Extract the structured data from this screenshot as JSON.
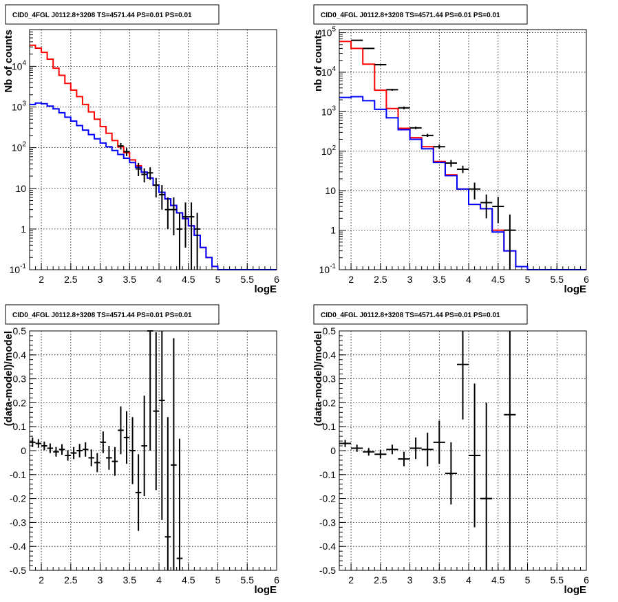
{
  "chart_data": [
    {
      "type": "line",
      "title": "CID0_4FGL J0112.8+3208 TS=4571.44 PS=0.01 PS=0.01",
      "xlabel": "logE",
      "ylabel": "Nb of counts",
      "yscale": "log",
      "xlim": [
        1.8,
        6
      ],
      "ylim": [
        0.1,
        80000
      ],
      "grid": true,
      "x_ticks": [
        "2",
        "2.5",
        "3",
        "3.5",
        "4",
        "4.5",
        "5",
        "5.5",
        "6"
      ],
      "y_ticks": [
        "10^-1",
        "1",
        "10",
        "10^2",
        "10^3",
        "10^4"
      ],
      "colors": {
        "model_total": "#ff0000",
        "model_source": "#0000ff",
        "data": "#000000"
      },
      "bin_edges": [
        1.8,
        1.9,
        2.0,
        2.1,
        2.2,
        2.3,
        2.4,
        2.5,
        2.6,
        2.7,
        2.8,
        2.9,
        3.0,
        3.1,
        3.2,
        3.3,
        3.4,
        3.5,
        3.6,
        3.7,
        3.8,
        3.9,
        4.0,
        4.1,
        4.2,
        4.3,
        4.4,
        4.5,
        4.6,
        4.7,
        4.8,
        4.9,
        5.0,
        5.1,
        5.2,
        5.3,
        5.4,
        5.5,
        5.6,
        5.7,
        5.8,
        5.9,
        6.0
      ],
      "series": [
        {
          "values": [
            33000,
            28000,
            22000,
            15000,
            9000,
            6000,
            3800,
            2600,
            1800,
            1150,
            760,
            500,
            330,
            225,
            150,
            105,
            75,
            50,
            36,
            25,
            18,
            12,
            8,
            5.5,
            3.8,
            2.5,
            1.8,
            1.2,
            0.7,
            0.35,
            0.2,
            0.12,
            0.1,
            0.1,
            0.1,
            0.1,
            0.1,
            0.1,
            0.1,
            0.1,
            0.1,
            0.1
          ]
        },
        {
          "values": [
            1150,
            1250,
            1200,
            1050,
            900,
            720,
            560,
            450,
            350,
            270,
            210,
            165,
            130,
            105,
            85,
            68,
            55,
            43,
            33,
            25,
            18,
            12,
            8,
            5.5,
            3.8,
            2.5,
            1.8,
            1.2,
            0.7,
            0.35,
            0.2,
            0.12,
            0.1,
            0.1,
            0.1,
            0.1,
            0.1,
            0.1,
            0.1,
            0.1,
            0.1,
            0.1
          ]
        }
      ],
      "points": [
        {
          "x": 3.35,
          "y": 110,
          "lo": 90,
          "hi": 130
        },
        {
          "x": 3.45,
          "y": 80,
          "lo": 62,
          "hi": 98
        },
        {
          "x": 3.65,
          "y": 30,
          "lo": 20,
          "hi": 42
        },
        {
          "x": 3.75,
          "y": 22,
          "lo": 14,
          "hi": 31
        },
        {
          "x": 3.85,
          "y": 24,
          "lo": 16,
          "hi": 33
        },
        {
          "x": 3.95,
          "y": 12,
          "lo": 6,
          "hi": 18
        },
        {
          "x": 4.05,
          "y": 7,
          "lo": 3,
          "hi": 12
        },
        {
          "x": 4.15,
          "y": 3,
          "lo": 1,
          "hi": 6
        },
        {
          "x": 4.25,
          "y": 3,
          "lo": 0.7,
          "hi": 6
        },
        {
          "x": 4.35,
          "y": 1,
          "lo": 0.1,
          "hi": 2.5
        },
        {
          "x": 4.45,
          "y": 2,
          "lo": 0.35,
          "hi": 4.5
        },
        {
          "x": 4.55,
          "y": 2,
          "lo": 0.1,
          "hi": 4.5
        },
        {
          "x": 4.65,
          "y": 1,
          "lo": 0.1,
          "hi": 2.5
        }
      ]
    },
    {
      "type": "line",
      "title": "CID0_4FGL J0112.8+3208 TS=4571.44 PS=0.01 PS=0.01",
      "xlabel": "logE",
      "ylabel": "nb of counts",
      "yscale": "log",
      "xlim": [
        1.8,
        6
      ],
      "ylim": [
        0.1,
        120000
      ],
      "grid": true,
      "x_ticks": [
        "2",
        "2.5",
        "3",
        "3.5",
        "4",
        "4.5",
        "5",
        "5.5",
        "6"
      ],
      "y_ticks": [
        "10^-1",
        "1",
        "10",
        "10^2",
        "10^3",
        "10^4",
        "10^5"
      ],
      "colors": {
        "model_total": "#ff0000",
        "model_source": "#0000ff",
        "data": "#000000"
      },
      "bin_edges": [
        1.8,
        2.0,
        2.2,
        2.4,
        2.6,
        2.8,
        3.0,
        3.2,
        3.4,
        3.6,
        3.8,
        4.0,
        4.2,
        4.4,
        4.6,
        4.8,
        5.0,
        5.2,
        5.4,
        5.6,
        5.8,
        6.0
      ],
      "series": [
        {
          "values": [
            60000,
            40000,
            16000,
            3500,
            1200,
            380,
            220,
            130,
            55,
            25,
            11,
            4.5,
            3.5,
            1.0,
            0.3,
            0.12,
            0.1,
            0.1,
            0.1,
            0.1,
            0.1
          ]
        },
        {
          "values": [
            2300,
            2400,
            1900,
            1150,
            700,
            350,
            200,
            115,
            52,
            24,
            11,
            4.5,
            3.5,
            0.9,
            0.3,
            0.12,
            0.1,
            0.1,
            0.1,
            0.1,
            0.1
          ]
        }
      ],
      "points": [
        {
          "x": 2.1,
          "y": 64000,
          "lo": 62000,
          "hi": 66000
        },
        {
          "x": 2.3,
          "y": 40000,
          "lo": 38500,
          "hi": 41500
        },
        {
          "x": 2.5,
          "y": 15500,
          "lo": 15000,
          "hi": 16000
        },
        {
          "x": 2.7,
          "y": 3600,
          "lo": 3400,
          "hi": 3800
        },
        {
          "x": 2.9,
          "y": 1250,
          "lo": 1150,
          "hi": 1350
        },
        {
          "x": 3.1,
          "y": 390,
          "lo": 360,
          "hi": 420
        },
        {
          "x": 3.3,
          "y": 250,
          "lo": 230,
          "hi": 275
        },
        {
          "x": 3.5,
          "y": 130,
          "lo": 115,
          "hi": 148
        },
        {
          "x": 3.7,
          "y": 50,
          "lo": 40,
          "hi": 60
        },
        {
          "x": 3.9,
          "y": 35,
          "lo": 28,
          "hi": 43
        },
        {
          "x": 4.1,
          "y": 11,
          "lo": 6,
          "hi": 16
        },
        {
          "x": 4.3,
          "y": 5,
          "lo": 2,
          "hi": 8
        },
        {
          "x": 4.5,
          "y": 4,
          "lo": 1.5,
          "hi": 7
        },
        {
          "x": 4.7,
          "y": 1,
          "lo": 0.1,
          "hi": 2.5
        }
      ]
    },
    {
      "type": "scatter",
      "title": "CID0_4FGL J0112.8+3208 TS=4571.44 PS=0.01 PS=0.01",
      "xlabel": "logE",
      "ylabel": "(data-model)/model",
      "xlim": [
        1.8,
        6
      ],
      "ylim": [
        -0.5,
        0.5
      ],
      "grid": true,
      "x_ticks": [
        "2",
        "2.5",
        "3",
        "3.5",
        "4",
        "4.5",
        "5",
        "5.5",
        "6"
      ],
      "y_ticks": [
        "-0.5",
        "-0.4",
        "-0.3",
        "-0.2",
        "-0.1",
        "0",
        "0.1",
        "0.2",
        "0.3",
        "0.4",
        "0.5"
      ],
      "xerr": 0.05,
      "points": [
        {
          "x": 1.85,
          "y": 0.035,
          "err": 0.02
        },
        {
          "x": 1.95,
          "y": 0.03,
          "err": 0.018
        },
        {
          "x": 2.05,
          "y": 0.02,
          "err": 0.018
        },
        {
          "x": 2.15,
          "y": 0.01,
          "err": 0.02
        },
        {
          "x": 2.25,
          "y": -0.005,
          "err": 0.02
        },
        {
          "x": 2.35,
          "y": 0.005,
          "err": 0.022
        },
        {
          "x": 2.45,
          "y": -0.02,
          "err": 0.022
        },
        {
          "x": 2.55,
          "y": -0.01,
          "err": 0.025
        },
        {
          "x": 2.65,
          "y": 0.0,
          "err": 0.028
        },
        {
          "x": 2.75,
          "y": 0.005,
          "err": 0.03
        },
        {
          "x": 2.85,
          "y": -0.03,
          "err": 0.035
        },
        {
          "x": 2.95,
          "y": -0.05,
          "err": 0.04
        },
        {
          "x": 3.05,
          "y": 0.035,
          "err": 0.045
        },
        {
          "x": 3.15,
          "y": -0.03,
          "err": 0.05
        },
        {
          "x": 3.25,
          "y": -0.045,
          "err": 0.06
        },
        {
          "x": 3.35,
          "y": 0.085,
          "err": 0.1
        },
        {
          "x": 3.45,
          "y": 0.055,
          "err": 0.11
        },
        {
          "x": 3.55,
          "y": 0.0,
          "err": 0.14
        },
        {
          "x": 3.65,
          "y": -0.175,
          "err": 0.16
        },
        {
          "x": 3.75,
          "y": 0.02,
          "err": 0.21
        },
        {
          "x": 3.85,
          "y": 0.5,
          "err": 0.5
        },
        {
          "x": 3.95,
          "y": 0.165,
          "err": 0.33
        },
        {
          "x": 4.05,
          "y": 0.21,
          "err": 0.5
        },
        {
          "x": 4.15,
          "y": -0.36,
          "err": 0.5
        },
        {
          "x": 4.25,
          "y": -0.06,
          "err": 0.53
        },
        {
          "x": 4.35,
          "y": -0.45,
          "err": 0.5
        }
      ]
    },
    {
      "type": "scatter",
      "title": "CID0_4FGL J0112.8+3208 TS=4571.44 PS=0.01 PS=0.01",
      "xlabel": "logE",
      "ylabel": "(data-model)/model",
      "xlim": [
        1.8,
        6
      ],
      "ylim": [
        -0.5,
        0.5
      ],
      "grid": true,
      "x_ticks": [
        "2",
        "2.5",
        "3",
        "3.5",
        "4",
        "4.5",
        "5",
        "5.5",
        "6"
      ],
      "y_ticks": [
        "-0.5",
        "-0.4",
        "-0.3",
        "-0.2",
        "-0.1",
        "0",
        "0.1",
        "0.2",
        "0.3",
        "0.4",
        "0.5"
      ],
      "xerr": 0.1,
      "points": [
        {
          "x": 1.9,
          "y": 0.03,
          "err": 0.015
        },
        {
          "x": 2.1,
          "y": 0.01,
          "err": 0.015
        },
        {
          "x": 2.3,
          "y": -0.005,
          "err": 0.016
        },
        {
          "x": 2.5,
          "y": -0.015,
          "err": 0.018
        },
        {
          "x": 2.7,
          "y": 0.005,
          "err": 0.02
        },
        {
          "x": 2.9,
          "y": -0.035,
          "err": 0.03
        },
        {
          "x": 3.1,
          "y": 0.01,
          "err": 0.045
        },
        {
          "x": 3.3,
          "y": 0.005,
          "err": 0.07
        },
        {
          "x": 3.5,
          "y": 0.035,
          "err": 0.09
        },
        {
          "x": 3.7,
          "y": -0.095,
          "err": 0.13
        },
        {
          "x": 3.9,
          "y": 0.36,
          "err": 0.23
        },
        {
          "x": 4.1,
          "y": -0.02,
          "err": 0.3
        },
        {
          "x": 4.3,
          "y": -0.2,
          "err": 0.4
        },
        {
          "x": 4.7,
          "y": 0.15,
          "err": 0.65
        }
      ]
    }
  ]
}
